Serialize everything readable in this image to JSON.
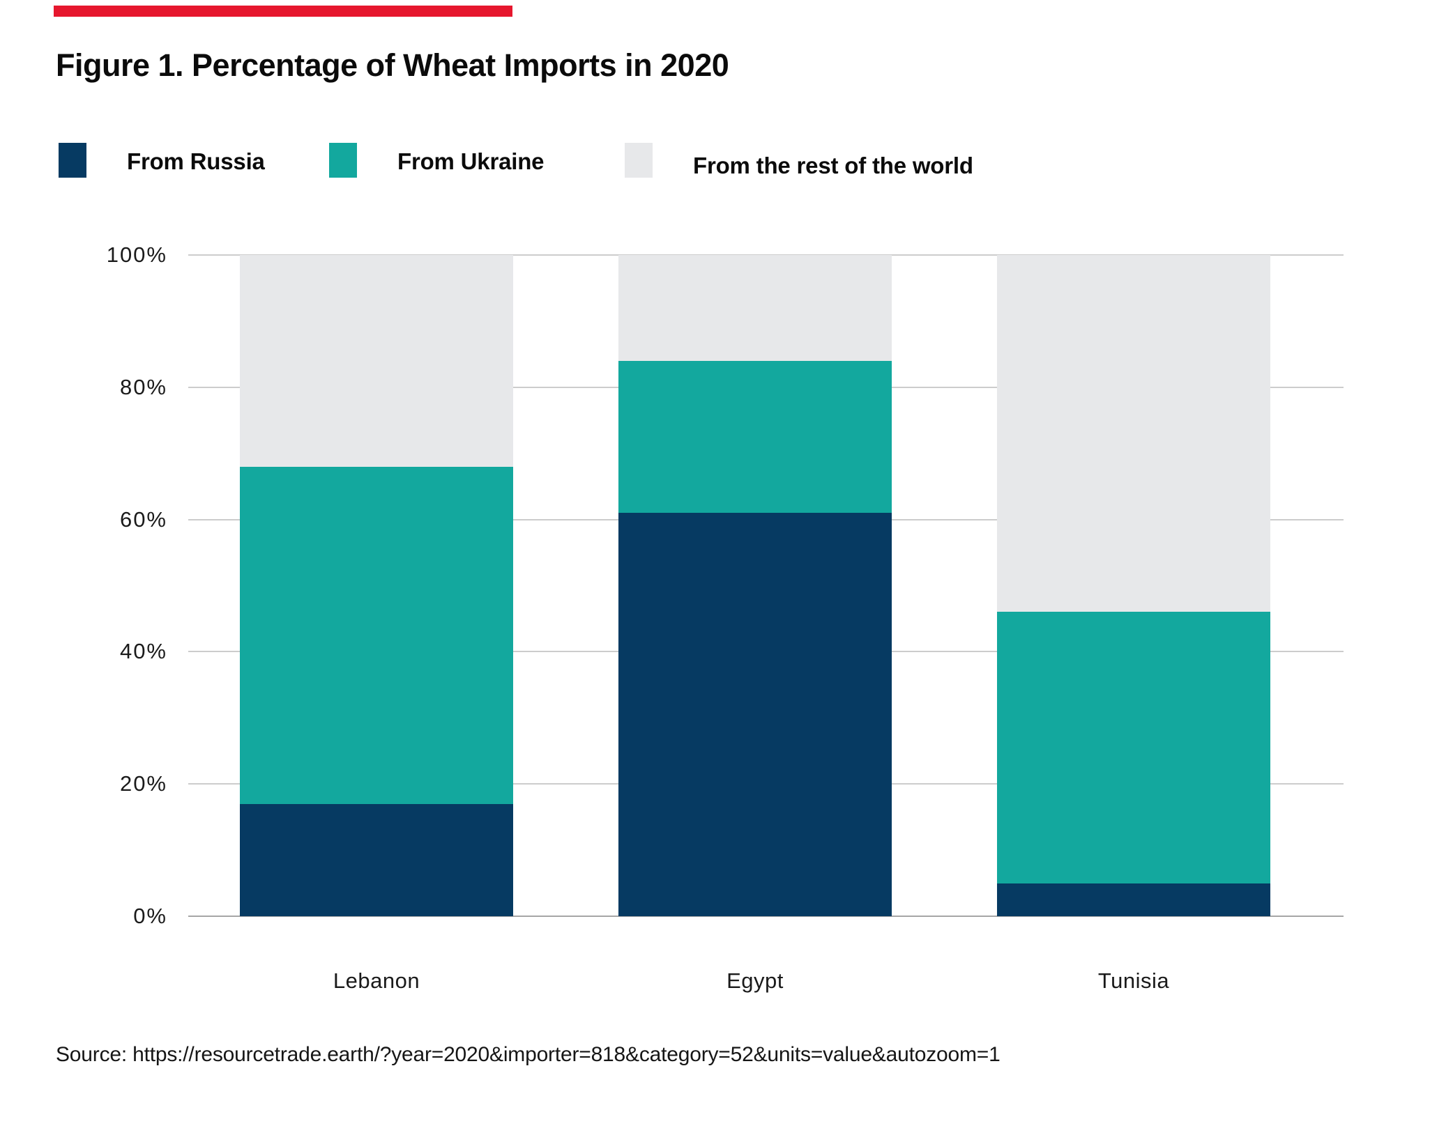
{
  "header": {
    "title": "Figure 1. Percentage of Wheat Imports in 2020"
  },
  "chart_data": {
    "type": "bar",
    "stacked": true,
    "title": "Figure 1. Percentage of Wheat Imports in 2020",
    "categories": [
      "Lebanon",
      "Egypt",
      "Tunisia"
    ],
    "series": [
      {
        "name": "From Russia",
        "color": "#063A62",
        "values": [
          17,
          61,
          5
        ]
      },
      {
        "name": "From Ukraine",
        "color": "#13A89E",
        "values": [
          51,
          23,
          41
        ]
      },
      {
        "name": "From the rest of the world",
        "color": "#E7E8EA",
        "values": [
          32,
          16,
          54
        ]
      }
    ],
    "xlabel": "",
    "ylabel": "",
    "ylim": [
      0,
      100
    ],
    "yticks": [
      0,
      20,
      40,
      60,
      80,
      100
    ],
    "ytick_labels": [
      "0%",
      "20%",
      "40%",
      "60%",
      "80%",
      "100%"
    ],
    "grid": true,
    "legend_position": "top"
  },
  "footer": {
    "source": "Source: https://resourcetrade.earth/?year=2020&importer=818&category=52&units=value&autozoom=1"
  },
  "colors": {
    "accent_bar": "#E6172E",
    "gridline": "#CCCCCC",
    "axis_line": "#A6A6A6",
    "text": "#111111"
  }
}
